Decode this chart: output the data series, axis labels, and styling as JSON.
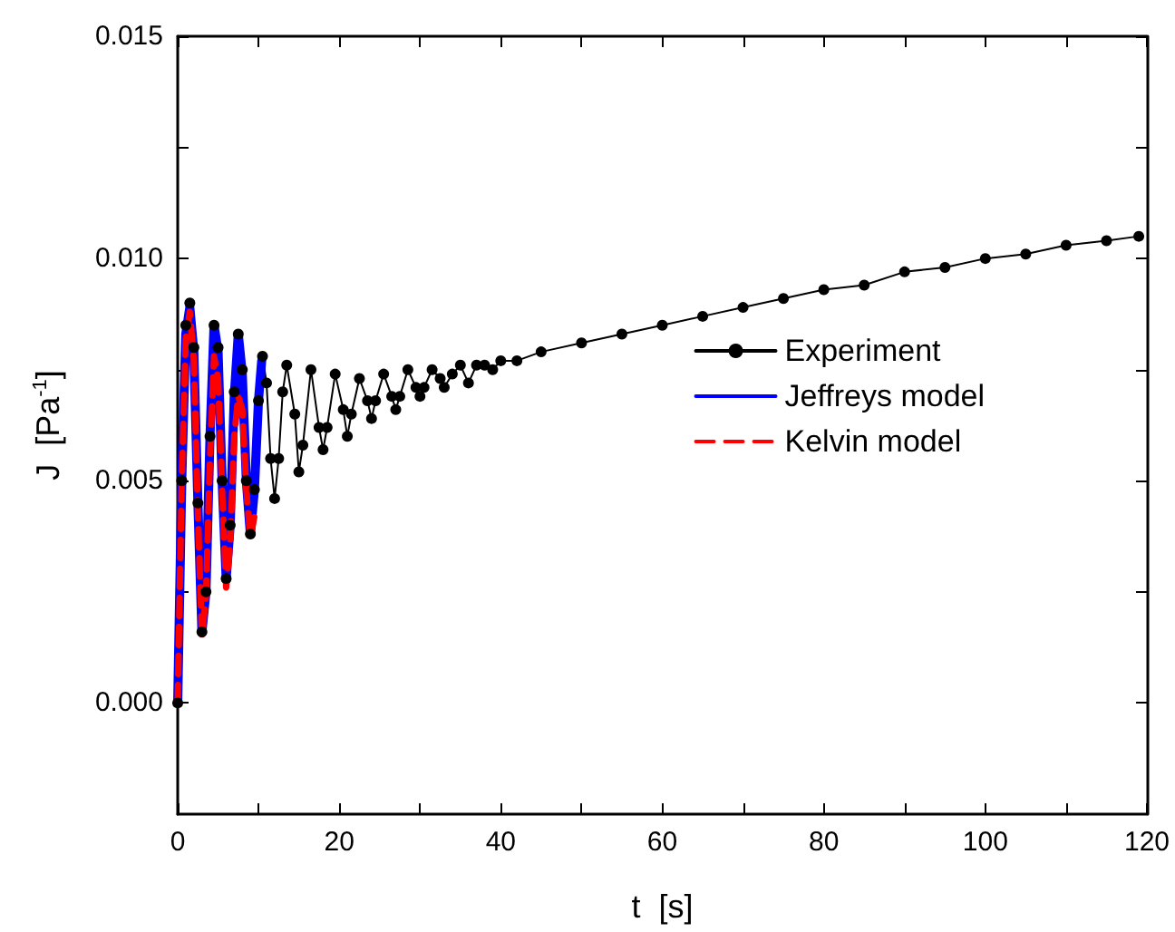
{
  "chart_data": {
    "type": "line",
    "xlabel": "t  [s]",
    "ylabel": "J  [Pa$^{-1}$]",
    "xlim": [
      0,
      120
    ],
    "xticks": [
      0,
      {
        "value": 10,
        "label": null
      },
      20,
      {
        "value": 30,
        "label": null
      },
      40,
      {
        "value": 50,
        "label": null
      },
      60,
      {
        "value": 70,
        "label": null
      },
      80,
      {
        "value": 90,
        "label": null
      },
      100,
      {
        "value": 110,
        "label": null
      },
      120
    ],
    "ylim": [
      -0.0025,
      0.015
    ],
    "yticks": [
      {
        "value": 0,
        "label": "0.000"
      },
      {
        "value": 0.0025,
        "label": null
      },
      {
        "value": 0.005,
        "label": "0.005"
      },
      {
        "value": 0.0075,
        "label": null
      },
      {
        "value": 0.01,
        "label": "0.010"
      },
      {
        "value": 0.0125,
        "label": null
      },
      {
        "value": 0.015,
        "label": "0.015"
      }
    ],
    "grid": false,
    "legend": "right",
    "series": [
      {
        "name": "Experiment",
        "color": "#000000",
        "marker": "circle",
        "line_style": "solid",
        "x": [
          0,
          0.5,
          1,
          1.5,
          2,
          2.5,
          3,
          3.5,
          4,
          4.5,
          5,
          5.5,
          6,
          6.5,
          7,
          7.5,
          8,
          8.5,
          9,
          9.5,
          10,
          10.5,
          11,
          11.5,
          12,
          12.5,
          13,
          13.5,
          14.5,
          15,
          15.5,
          16.5,
          17.5,
          18,
          18.5,
          19.5,
          20.5,
          21,
          21.5,
          22.5,
          23.5,
          24,
          24.5,
          25.5,
          26.5,
          27,
          27.5,
          28.5,
          29.5,
          30,
          30.5,
          31.5,
          32.5,
          33,
          34,
          35,
          36,
          37,
          38,
          39,
          40,
          42,
          45,
          50,
          55,
          60,
          65,
          70,
          75,
          80,
          85,
          90,
          95,
          100,
          105,
          110,
          115,
          119
        ],
        "values": [
          0,
          0.005,
          0.0085,
          0.009,
          0.008,
          0.0045,
          0.0016,
          0.0025,
          0.006,
          0.0085,
          0.008,
          0.005,
          0.0028,
          0.004,
          0.007,
          0.0083,
          0.0075,
          0.005,
          0.0038,
          0.0048,
          0.0068,
          0.0078,
          0.0072,
          0.0055,
          0.0046,
          0.0055,
          0.007,
          0.0076,
          0.0065,
          0.0052,
          0.0058,
          0.0075,
          0.0062,
          0.0057,
          0.0062,
          0.0074,
          0.0066,
          0.006,
          0.0065,
          0.0073,
          0.0068,
          0.0064,
          0.0068,
          0.0074,
          0.0069,
          0.0066,
          0.0069,
          0.0075,
          0.0071,
          0.0069,
          0.0071,
          0.0075,
          0.0073,
          0.0071,
          0.0074,
          0.0076,
          0.0072,
          0.0076,
          0.0076,
          0.0075,
          0.0077,
          0.0077,
          0.0079,
          0.0081,
          0.0083,
          0.0085,
          0.0087,
          0.0089,
          0.0091,
          0.0093,
          0.0094,
          0.0097,
          0.0098,
          0.01,
          0.0101,
          0.0103,
          0.0104,
          0.0105
        ]
      },
      {
        "name": "Jeffreys model",
        "color": "#0000ff",
        "marker": "none",
        "line_style": "solid",
        "x": [
          0,
          0.5,
          1,
          1.5,
          2,
          2.5,
          3,
          3.5,
          4,
          4.5,
          5,
          5.5,
          6,
          6.5,
          7,
          7.5,
          8,
          8.5,
          9,
          9.5,
          10,
          10.4
        ],
        "values": [
          0,
          0.005,
          0.0083,
          0.0089,
          0.0079,
          0.0045,
          0.0016,
          0.0025,
          0.006,
          0.0085,
          0.0079,
          0.005,
          0.0028,
          0.004,
          0.0069,
          0.0083,
          0.0074,
          0.005,
          0.0038,
          0.0048,
          0.0068,
          0.0077
        ]
      },
      {
        "name": "Kelvin model",
        "color": "#ff0000",
        "marker": "none",
        "line_style": "dashed",
        "x": [
          0,
          0.5,
          1,
          1.5,
          2,
          2.5,
          3,
          3.5,
          4,
          4.5,
          5,
          5.5,
          6,
          6.5,
          7,
          7.5,
          8,
          8.5,
          9,
          9.5
        ],
        "values": [
          0,
          0.005,
          0.0082,
          0.0088,
          0.0077,
          0.0043,
          0.0015,
          0.0024,
          0.0055,
          0.0078,
          0.0073,
          0.0048,
          0.0026,
          0.0036,
          0.006,
          0.0069,
          0.0066,
          0.0048,
          0.0037,
          0.0042
        ]
      }
    ]
  }
}
